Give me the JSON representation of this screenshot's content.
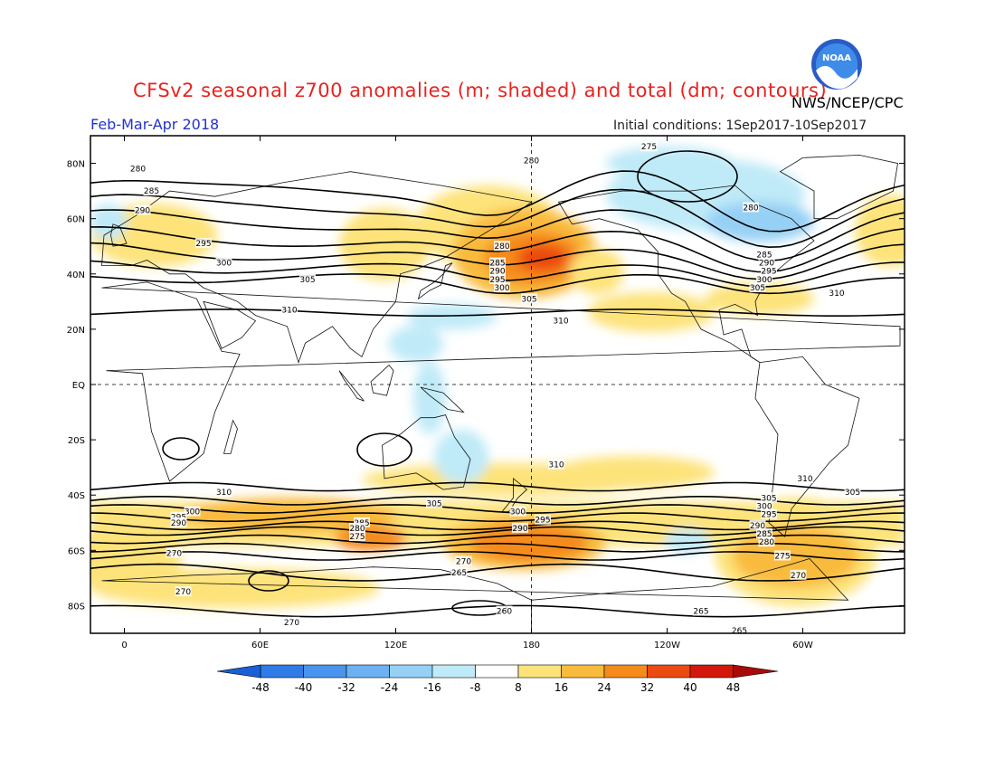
{
  "header": {
    "title": "CFSv2 seasonal z700 anomalies (m; shaded) and total (dm; contours)",
    "agency": "NWS/NCEP/CPC",
    "period": "Feb-Mar-Apr 2018",
    "initial_conditions": "Initial conditions: 1Sep2017-10Sep2017",
    "logo_text": "NOAA"
  },
  "map": {
    "lat_labels": [
      "80N",
      "60N",
      "40N",
      "20N",
      "EQ",
      "20S",
      "40S",
      "60S",
      "80S"
    ],
    "lat_values": [
      80,
      60,
      40,
      20,
      0,
      -20,
      -40,
      -60,
      -80
    ],
    "lon_labels": [
      "0",
      "60E",
      "120E",
      "180",
      "120W",
      "60W",
      "0"
    ],
    "lon_values": [
      0,
      60,
      120,
      180,
      240,
      300,
      360
    ],
    "contour_labels": [
      {
        "text": "275",
        "lon": 232,
        "lat": 86
      },
      {
        "text": "280",
        "lon": 180,
        "lat": 81
      },
      {
        "text": "280",
        "lon": 6,
        "lat": 78
      },
      {
        "text": "285",
        "lon": 12,
        "lat": 70
      },
      {
        "text": "290",
        "lon": 8,
        "lat": 63
      },
      {
        "text": "295",
        "lon": 35,
        "lat": 51
      },
      {
        "text": "300",
        "lon": 44,
        "lat": 44
      },
      {
        "text": "305",
        "lon": 81,
        "lat": 38
      },
      {
        "text": "310",
        "lon": 73,
        "lat": 27
      },
      {
        "text": "280",
        "lon": 167,
        "lat": 50
      },
      {
        "text": "285",
        "lon": 165,
        "lat": 44
      },
      {
        "text": "290",
        "lon": 165,
        "lat": 41
      },
      {
        "text": "295",
        "lon": 165,
        "lat": 38
      },
      {
        "text": "300",
        "lon": 167,
        "lat": 35
      },
      {
        "text": "305",
        "lon": 179,
        "lat": 31
      },
      {
        "text": "310",
        "lon": 193,
        "lat": 23
      },
      {
        "text": "280",
        "lon": 277,
        "lat": 64
      },
      {
        "text": "285",
        "lon": 283,
        "lat": 47
      },
      {
        "text": "290",
        "lon": 284,
        "lat": 44
      },
      {
        "text": "295",
        "lon": 285,
        "lat": 41
      },
      {
        "text": "300",
        "lon": 283,
        "lat": 38
      },
      {
        "text": "305",
        "lon": 280,
        "lat": 35
      },
      {
        "text": "310",
        "lon": 315,
        "lat": 33
      },
      {
        "text": "310",
        "lon": 191,
        "lat": -29
      },
      {
        "text": "310",
        "lon": 301,
        "lat": -34
      },
      {
        "text": "310",
        "lon": 44,
        "lat": -39
      },
      {
        "text": "305",
        "lon": -38,
        "lat": -39
      },
      {
        "text": "305",
        "lon": 137,
        "lat": -43
      },
      {
        "text": "305",
        "lon": 285,
        "lat": -41
      },
      {
        "text": "300",
        "lon": 174,
        "lat": -46
      },
      {
        "text": "300",
        "lon": 30,
        "lat": -46
      },
      {
        "text": "300",
        "lon": 283,
        "lat": -44
      },
      {
        "text": "295",
        "lon": 185,
        "lat": -49
      },
      {
        "text": "295",
        "lon": 24,
        "lat": -48
      },
      {
        "text": "295",
        "lon": 285,
        "lat": -47
      },
      {
        "text": "290",
        "lon": 175,
        "lat": -52
      },
      {
        "text": "290",
        "lon": 24,
        "lat": -50
      },
      {
        "text": "290",
        "lon": 280,
        "lat": -51
      },
      {
        "text": "285",
        "lon": 105,
        "lat": -50
      },
      {
        "text": "285",
        "lon": 283,
        "lat": -54
      },
      {
        "text": "280",
        "lon": 103,
        "lat": -52
      },
      {
        "text": "280",
        "lon": 284,
        "lat": -57
      },
      {
        "text": "275",
        "lon": 103,
        "lat": -55
      },
      {
        "text": "275",
        "lon": 291,
        "lat": -62
      },
      {
        "text": "270",
        "lon": 22,
        "lat": -61
      },
      {
        "text": "270",
        "lon": 150,
        "lat": -64
      },
      {
        "text": "270",
        "lon": 298,
        "lat": -69
      },
      {
        "text": "270",
        "lon": 26,
        "lat": -75
      },
      {
        "text": "270",
        "lon": 74,
        "lat": -86
      },
      {
        "text": "265",
        "lon": 148,
        "lat": -68
      },
      {
        "text": "265",
        "lon": 255,
        "lat": -82
      },
      {
        "text": "265",
        "lon": 272,
        "lat": -89
      },
      {
        "text": "260",
        "lon": 168,
        "lat": -82
      }
    ]
  },
  "colorbar": {
    "labels": [
      "-48",
      "-40",
      "-32",
      "-24",
      "-16",
      "-8",
      "8",
      "16",
      "24",
      "32",
      "40",
      "48"
    ],
    "colors": [
      "#1a5fd6",
      "#2f7ce8",
      "#4994ee",
      "#6cb2f2",
      "#96d0f5",
      "#bfeaf8",
      "#ffffff",
      "#fde37a",
      "#f9bb3c",
      "#f48b1a",
      "#ec4a10",
      "#d3180b",
      "#a90a0a"
    ]
  }
}
